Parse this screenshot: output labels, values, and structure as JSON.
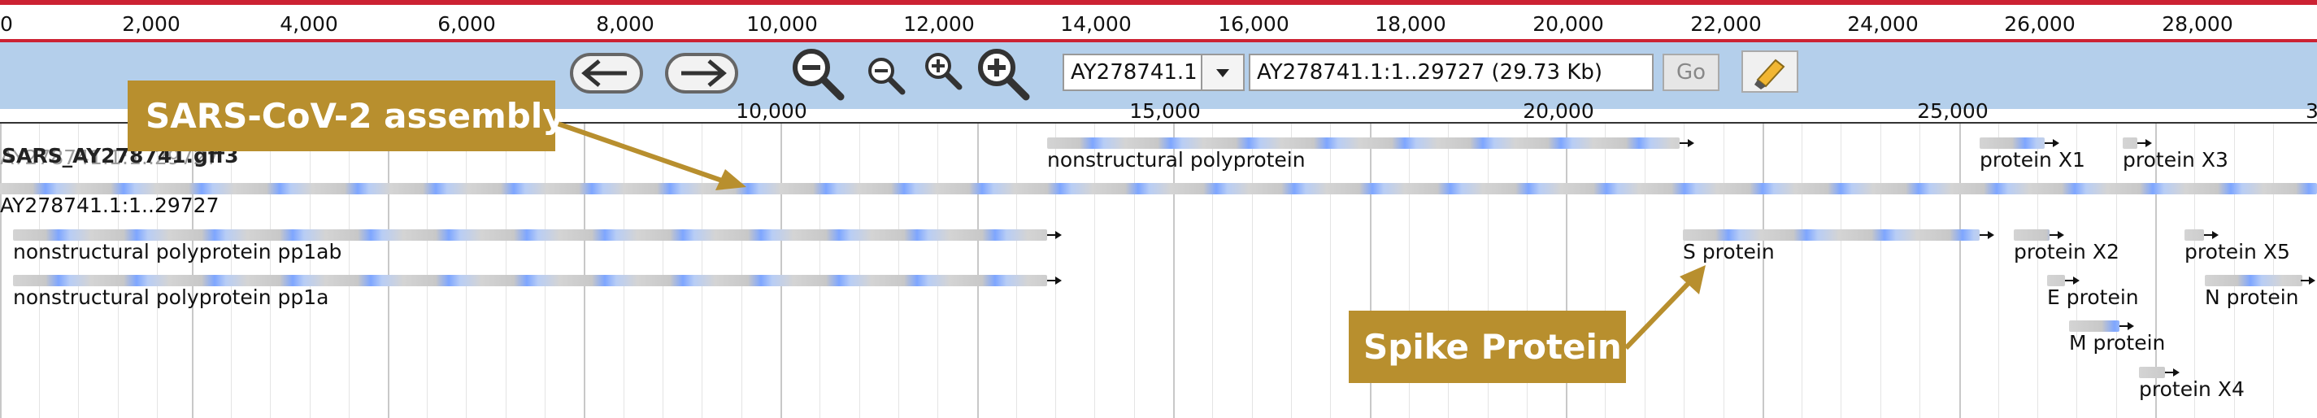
{
  "overview": {
    "labels": [
      "0",
      "2,000",
      "4,000",
      "6,000",
      "8,000",
      "10,000",
      "12,000",
      "14,000",
      "16,000",
      "18,000",
      "20,000",
      "22,000",
      "24,000",
      "26,000",
      "28,000"
    ]
  },
  "navbar": {
    "reference_sequence": "AY278741.1",
    "location": "AY278741.1:1..29727 (29.73 Kb)",
    "go_label": "Go"
  },
  "detail_ruler": {
    "labels": [
      "10,000",
      "15,000",
      "20,000",
      "25,000",
      "3"
    ]
  },
  "track": {
    "label": "SARS_AY278741.gff3",
    "ghost_label": "AY278741.1:1..29727",
    "features": [
      {
        "label": "nonstructural polyprotein"
      },
      {
        "label": "protein X1"
      },
      {
        "label": "protein X3"
      },
      {
        "label": "AY278741.1:1..29727"
      },
      {
        "label": "nonstructural polyprotein pp1ab"
      },
      {
        "label": "S protein"
      },
      {
        "label": "protein X2"
      },
      {
        "label": "protein X5"
      },
      {
        "label": "nonstructural polyprotein pp1a"
      },
      {
        "label": "E protein"
      },
      {
        "label": "N protein"
      },
      {
        "label": "M protein"
      },
      {
        "label": "protein X4"
      }
    ]
  },
  "callouts": {
    "assembly": "SARS-CoV-2 assembly",
    "spike": "Spike Protein"
  },
  "colors": {
    "ruler_border": "#cc2233",
    "navbar_bg": "#b4cfeb",
    "callout_bg": "#b88f2e",
    "feature_blue": "#7ea6ff",
    "feature_gray": "#d4d4d4"
  }
}
